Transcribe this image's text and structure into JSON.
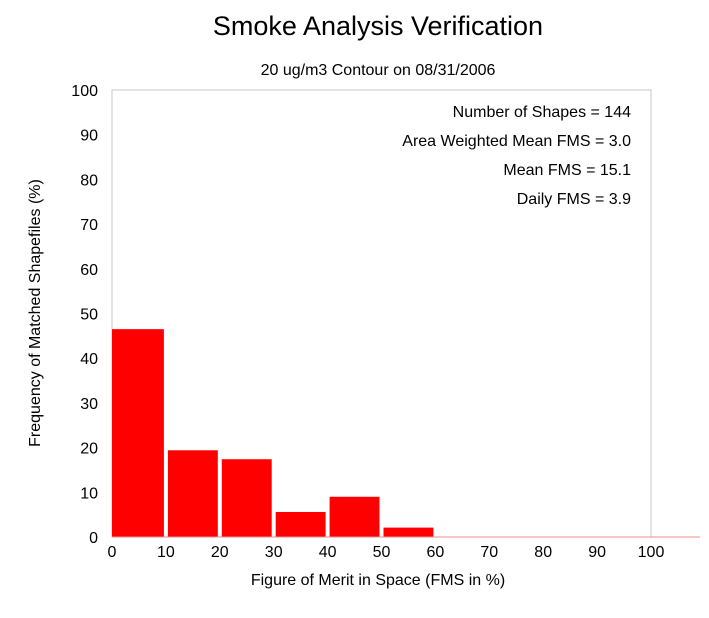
{
  "chart_data": {
    "type": "bar",
    "title": "Smoke Analysis Verification",
    "subtitle": "20 ug/m3 Contour on 08/31/2006",
    "xlabel": "Figure of Merit in Space (FMS in %)",
    "ylabel": "Frequency of Matched Shapefiles (%)",
    "xlim": [
      0,
      100
    ],
    "ylim": [
      0,
      100
    ],
    "x_ticks": [
      "0",
      "10",
      "20",
      "30",
      "40",
      "50",
      "60",
      "70",
      "80",
      "90",
      "100"
    ],
    "y_ticks": [
      "0",
      "10",
      "20",
      "30",
      "40",
      "50",
      "60",
      "70",
      "80",
      "90",
      "100"
    ],
    "bins": [
      {
        "start": 0,
        "end": 10,
        "value": 46.5
      },
      {
        "start": 10,
        "end": 20,
        "value": 19.4
      },
      {
        "start": 20,
        "end": 30,
        "value": 17.4
      },
      {
        "start": 30,
        "end": 40,
        "value": 5.6
      },
      {
        "start": 40,
        "end": 50,
        "value": 9.0
      },
      {
        "start": 50,
        "end": 60,
        "value": 2.1
      },
      {
        "start": 60,
        "end": 70,
        "value": 0
      },
      {
        "start": 70,
        "end": 80,
        "value": 0
      },
      {
        "start": 80,
        "end": 90,
        "value": 0
      },
      {
        "start": 90,
        "end": 100,
        "value": 0
      }
    ],
    "bar_color": "#ff0000",
    "grid": false,
    "annotations": [
      "Number of Shapes = 144",
      "Area Weighted Mean FMS = 3.0",
      "Mean FMS = 15.1",
      "Daily FMS = 3.9"
    ]
  }
}
